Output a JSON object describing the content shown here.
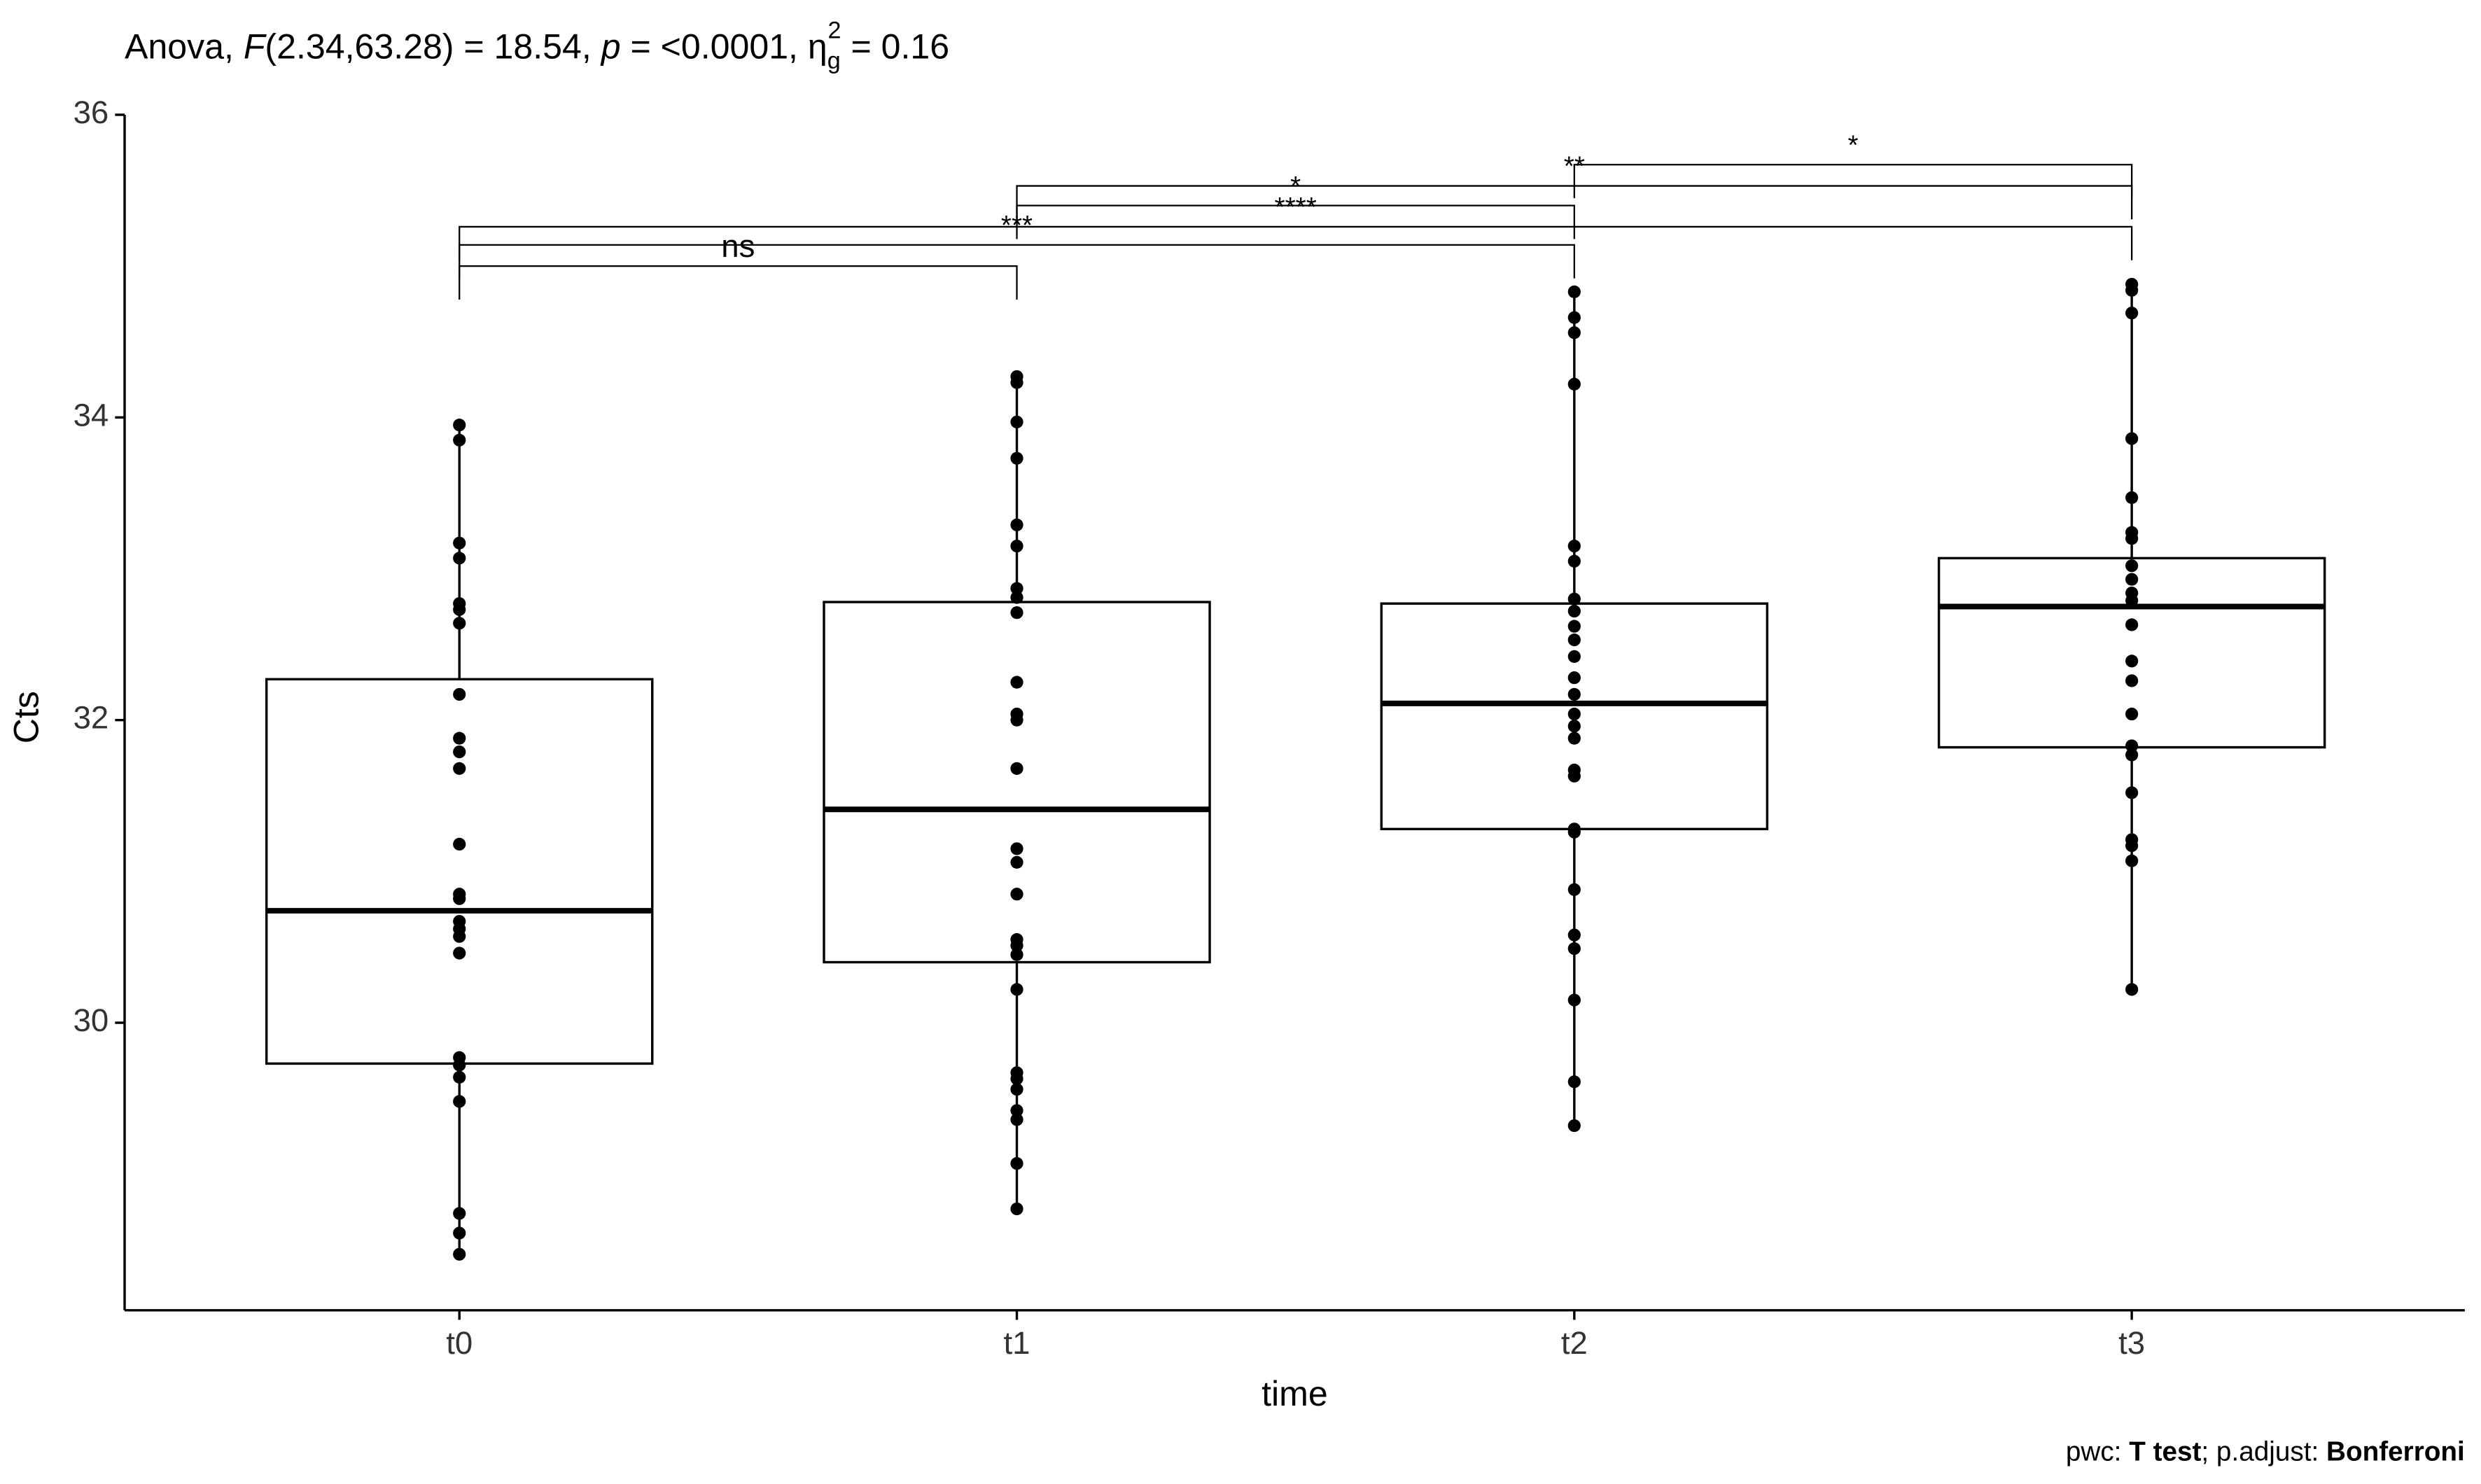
{
  "chart_data": {
    "type": "box",
    "title_parts": [
      "Anova, ",
      "F",
      "(2.34,63.28) = 18.54, ",
      "p",
      " = <0.0001, ",
      "η",
      "g",
      "2",
      " = 0.16"
    ],
    "x_label": "time",
    "y_label": "Cts",
    "categories": [
      "t0",
      "t1",
      "t2",
      "t3"
    ],
    "ylim": [
      28.1,
      36
    ],
    "yticks": [
      30,
      32,
      34,
      36
    ],
    "boxes": [
      {
        "low": 28.47,
        "q1": 29.73,
        "median": 30.74,
        "q3": 32.27,
        "high": 33.95
      },
      {
        "low": 28.77,
        "q1": 30.4,
        "median": 31.41,
        "q3": 32.78,
        "high": 34.28
      },
      {
        "low": 29.32,
        "q1": 31.28,
        "median": 32.11,
        "q3": 32.77,
        "high": 34.83
      },
      {
        "low": 30.22,
        "q1": 31.82,
        "median": 32.75,
        "q3": 33.07,
        "high": 34.89
      }
    ],
    "points": [
      [
        33.95,
        33.85,
        33.17,
        33.07,
        32.77,
        32.73,
        32.64,
        32.17,
        31.88,
        31.79,
        31.68,
        31.18,
        30.85,
        30.82,
        30.67,
        30.62,
        30.57,
        30.46,
        29.77,
        29.72,
        29.64,
        29.48,
        28.74,
        28.61,
        28.47
      ],
      [
        34.27,
        34.23,
        33.97,
        33.73,
        33.29,
        33.15,
        32.87,
        32.81,
        32.71,
        32.25,
        32.04,
        32.0,
        31.68,
        31.15,
        31.06,
        30.85,
        30.55,
        30.51,
        30.45,
        30.22,
        29.67,
        29.63,
        29.56,
        29.42,
        29.36,
        29.07,
        28.77
      ],
      [
        34.83,
        34.66,
        34.56,
        34.22,
        33.15,
        33.05,
        32.8,
        32.72,
        32.62,
        32.53,
        32.42,
        32.28,
        32.17,
        32.04,
        31.96,
        31.88,
        31.67,
        31.63,
        31.28,
        31.26,
        30.88,
        30.58,
        30.49,
        30.15,
        29.61,
        29.32
      ],
      [
        34.88,
        34.84,
        34.69,
        33.86,
        33.47,
        33.24,
        33.2,
        33.02,
        32.93,
        32.84,
        32.79,
        32.63,
        32.39,
        32.26,
        32.04,
        31.83,
        31.77,
        31.52,
        31.21,
        31.17,
        31.07,
        30.22
      ]
    ],
    "brackets": [
      {
        "group1": 0,
        "group2": 1,
        "label": "ns",
        "y": 35.0
      },
      {
        "group1": 0,
        "group2": 2,
        "label": "***",
        "y": 35.14
      },
      {
        "group1": 0,
        "group2": 3,
        "label": "****",
        "y": 35.26
      },
      {
        "group1": 1,
        "group2": 2,
        "label": "*",
        "y": 35.4
      },
      {
        "group1": 1,
        "group2": 3,
        "label": "**",
        "y": 35.53
      },
      {
        "group1": 2,
        "group2": 3,
        "label": "*",
        "y": 35.67
      }
    ],
    "caption_parts": [
      "pwc: ",
      "T test",
      "; p.adjust: ",
      "Bonferroni"
    ],
    "color": "#000000"
  }
}
